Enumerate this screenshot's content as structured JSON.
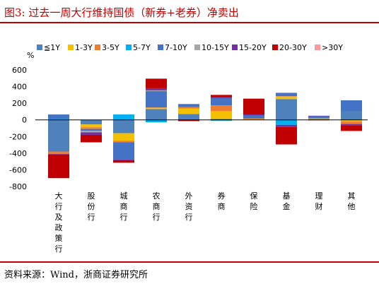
{
  "figure": {
    "title": "图3:  过去一周大行维持国债（新券+老券）净卖出",
    "source": "资料来源：Wind，浙商证券研究所"
  },
  "colors": {
    "title_red": "#c00000",
    "series": [
      "#4f81bd",
      "#f5c000",
      "#ed7d31",
      "#00b0f0",
      "#4472c4",
      "#a5a5a5",
      "#7030a0",
      "#c00000",
      "#ff9999"
    ]
  },
  "chart_data": {
    "type": "bar",
    "stacked": true,
    "unit_label": "%",
    "ylim": [
      -800,
      600
    ],
    "yticks": [
      600,
      400,
      200,
      0,
      -200,
      -400,
      -600,
      -800
    ],
    "legend_position": "top",
    "categories": [
      "大行及政策行",
      "股份行",
      "城商行",
      "农商行",
      "外资行",
      "券商",
      "保险",
      "基金",
      "理财",
      "其他"
    ],
    "series": [
      {
        "name": "≦1Y",
        "values": [
          -380,
          -55,
          -160,
          130,
          70,
          10,
          5,
          250,
          10,
          100
        ]
      },
      {
        "name": "1-3Y",
        "values": [
          0,
          -35,
          -90,
          15,
          65,
          95,
          5,
          30,
          5,
          -20
        ]
      },
      {
        "name": "3-5Y",
        "values": [
          -30,
          -20,
          -20,
          5,
          20,
          70,
          5,
          5,
          5,
          -30
        ]
      },
      {
        "name": "5-7Y",
        "values": [
          10,
          0,
          65,
          -30,
          0,
          -10,
          0,
          -60,
          0,
          0
        ]
      },
      {
        "name": "7-10Y",
        "values": [
          55,
          -20,
          -205,
          195,
          30,
          90,
          35,
          40,
          25,
          135
        ]
      },
      {
        "name": "10-15Y",
        "values": [
          0,
          -20,
          0,
          10,
          0,
          0,
          0,
          0,
          0,
          0
        ]
      },
      {
        "name": "15-20Y",
        "values": [
          -5,
          -30,
          -10,
          25,
          5,
          5,
          15,
          -25,
          5,
          -20
        ]
      },
      {
        "name": "20-30Y",
        "values": [
          -285,
          -90,
          -30,
          115,
          -15,
          30,
          190,
          -210,
          -5,
          -60
        ]
      },
      {
        "name": ">30Y",
        "values": [
          0,
          0,
          0,
          0,
          0,
          0,
          0,
          0,
          0,
          -10
        ]
      }
    ]
  }
}
